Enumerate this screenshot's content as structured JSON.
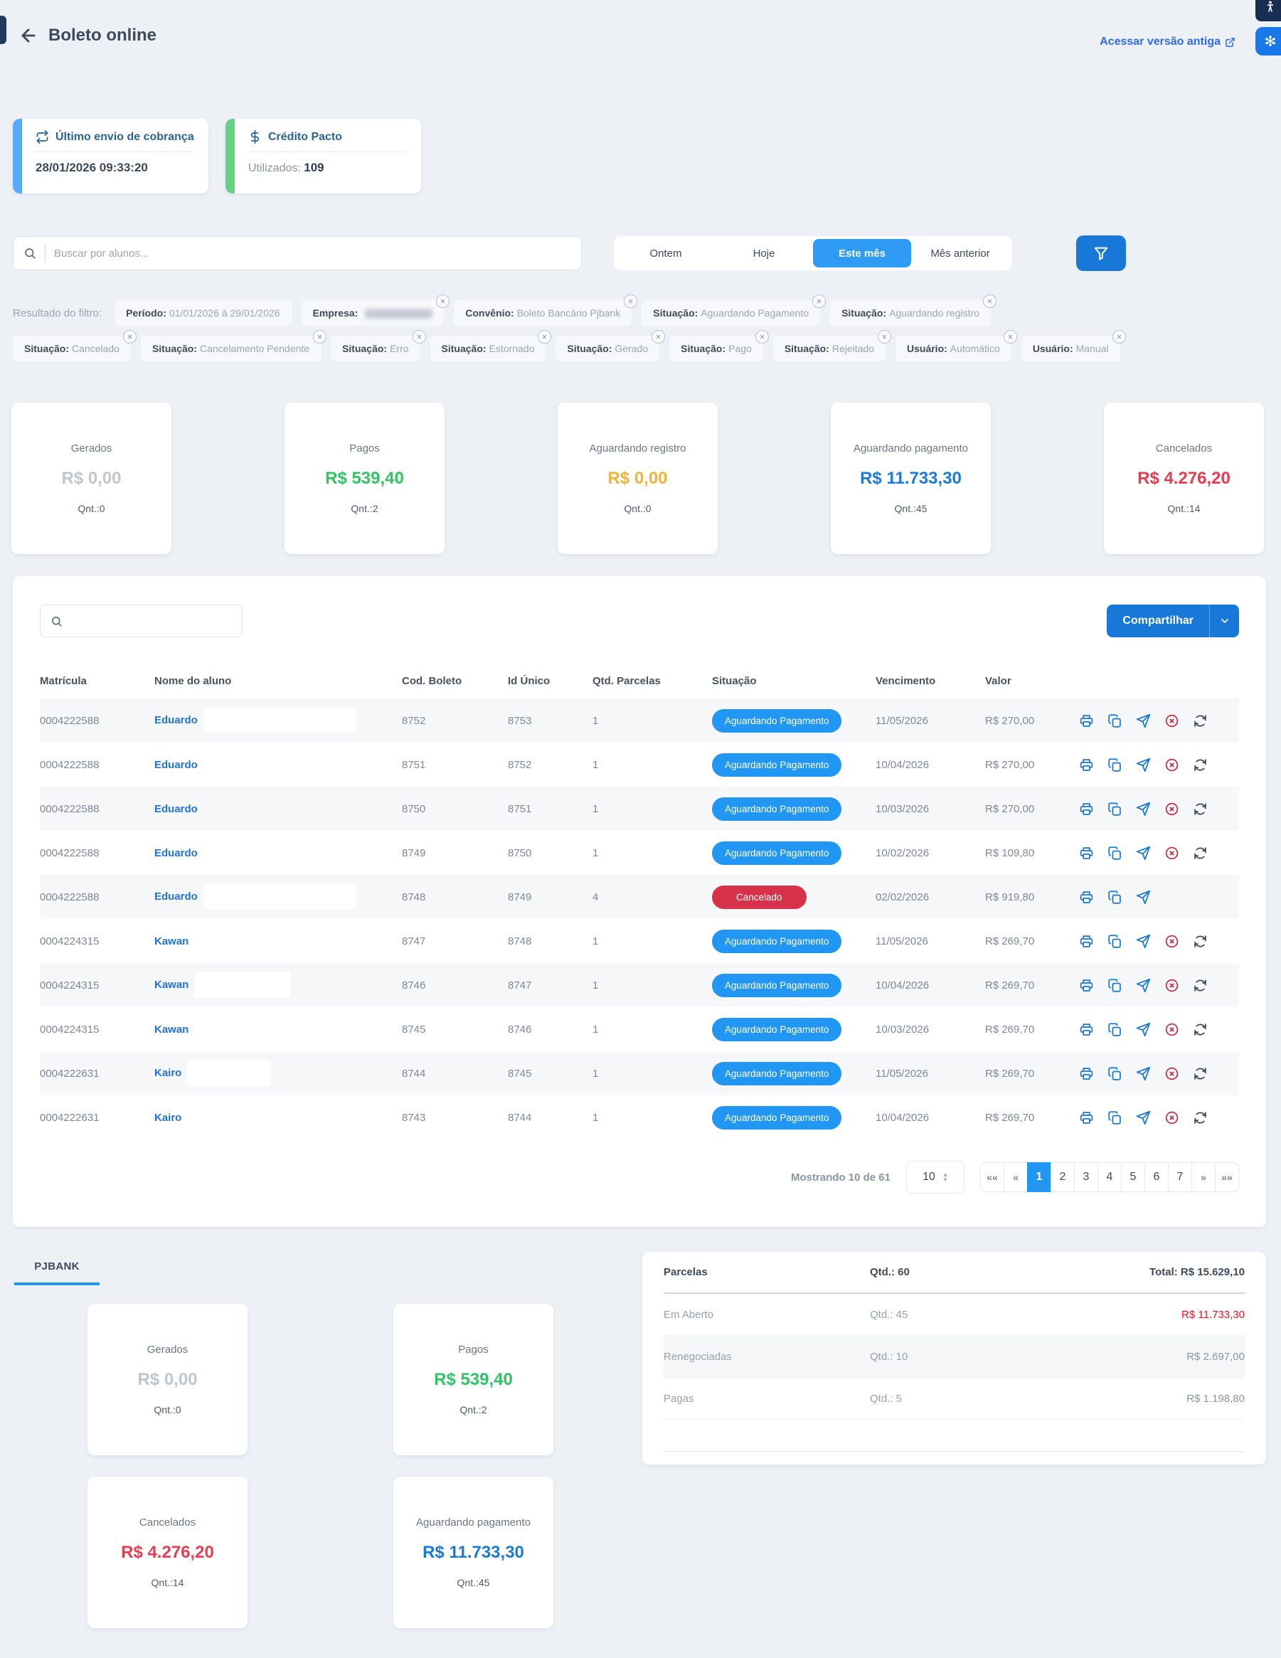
{
  "header": {
    "title": "Boleto online",
    "old_version_link": "Acessar versão antiga"
  },
  "info_cards": [
    {
      "title": "Último envio de cobrança",
      "icon": "repeat-icon",
      "accent": "#57aaf7",
      "value": "28/01/2026 09:33:20"
    },
    {
      "title": "Crédito Pacto",
      "icon": "dollar-icon",
      "accent": "#62d383",
      "label": "Utilizados:",
      "value": "109"
    }
  ],
  "search": {
    "placeholder": "Buscar por alunos..."
  },
  "date_filters": {
    "options": [
      "Ontem",
      "Hoje",
      "Este mês",
      "Mês anterior"
    ],
    "active": "Este mês"
  },
  "filter_results": {
    "label": "Resultado do filtro:",
    "chips": [
      {
        "label": "Período:",
        "value": "01/01/2026 à 29/01/2026",
        "closable": false
      },
      {
        "label": "Empresa:",
        "value": "",
        "redacted": true,
        "closable": true
      },
      {
        "label": "Convênio:",
        "value": "Boleto Bancário Pjbank",
        "closable": true
      },
      {
        "label": "Situação:",
        "value": "Aguardando Pagamento",
        "closable": true
      },
      {
        "label": "Situação:",
        "value": "Aguardando registro",
        "closable": true
      },
      {
        "label": "Situação:",
        "value": "Cancelado",
        "closable": true
      },
      {
        "label": "Situação:",
        "value": "Cancelamento Pendente",
        "closable": true
      },
      {
        "label": "Situação:",
        "value": "Erro",
        "closable": true
      },
      {
        "label": "Situação:",
        "value": "Estornado",
        "closable": true
      },
      {
        "label": "Situação:",
        "value": "Gerado",
        "closable": true
      },
      {
        "label": "Situação:",
        "value": "Pago",
        "closable": true
      },
      {
        "label": "Situação:",
        "value": "Rejeitado",
        "closable": true
      },
      {
        "label": "Usuário:",
        "value": "Automático",
        "closable": true
      },
      {
        "label": "Usuário:",
        "value": "Manual",
        "closable": true
      }
    ]
  },
  "summary_cards": [
    {
      "label": "Gerados",
      "value": "R$ 0,00",
      "qty": "Qnt.:0",
      "color": "#c0c6cf"
    },
    {
      "label": "Pagos",
      "value": "R$ 539,40",
      "qty": "Qnt.:2",
      "color": "#2fc563"
    },
    {
      "label": "Aguardando registro",
      "value": "R$ 0,00",
      "qty": "Qnt.:0",
      "color": "#f2b33d"
    },
    {
      "label": "Aguardando pagamento",
      "value": "R$ 11.733,30",
      "qty": "Qnt.:45",
      "color": "#1b79d8"
    },
    {
      "label": "Cancelados",
      "value": "R$ 4.276,20",
      "qty": "Qnt.:14",
      "color": "#e63c52"
    }
  ],
  "table": {
    "share_button": {
      "label": "Compartilhar"
    },
    "columns": [
      "Matrícula",
      "Nome do aluno",
      "Cod. Boleto",
      "Id Único",
      "Qtd. Parcelas",
      "Situação",
      "Vencimento",
      "Valor"
    ],
    "rows": [
      {
        "matricula": "0004222588",
        "nome": "Eduardo",
        "mask": 215,
        "cod": "8752",
        "id_unico": "8753",
        "parcelas": "1",
        "situacao": "Aguardando Pagamento",
        "situacao_tipo": "waiting",
        "vencimento": "11/05/2026",
        "valor": "R$ 270,00",
        "actions": [
          "print",
          "copy",
          "send",
          "cancel",
          "refresh"
        ]
      },
      {
        "matricula": "0004222588",
        "nome": "Eduardo",
        "mask": 0,
        "cod": "8751",
        "id_unico": "8752",
        "parcelas": "1",
        "situacao": "Aguardando Pagamento",
        "situacao_tipo": "waiting",
        "vencimento": "10/04/2026",
        "valor": "R$ 270,00",
        "actions": [
          "print",
          "copy",
          "send",
          "cancel",
          "refresh"
        ]
      },
      {
        "matricula": "0004222588",
        "nome": "Eduardo",
        "mask": 0,
        "cod": "8750",
        "id_unico": "8751",
        "parcelas": "1",
        "situacao": "Aguardando Pagamento",
        "situacao_tipo": "waiting",
        "vencimento": "10/03/2026",
        "valor": "R$ 270,00",
        "actions": [
          "print",
          "copy",
          "send",
          "cancel",
          "refresh"
        ]
      },
      {
        "matricula": "0004222588",
        "nome": "Eduardo",
        "mask": 0,
        "cod": "8749",
        "id_unico": "8750",
        "parcelas": "1",
        "situacao": "Aguardando Pagamento",
        "situacao_tipo": "waiting",
        "vencimento": "10/02/2026",
        "valor": "R$ 109,80",
        "actions": [
          "print",
          "copy",
          "send",
          "cancel",
          "refresh"
        ]
      },
      {
        "matricula": "0004222588",
        "nome": "Eduardo",
        "mask": 215,
        "cod": "8748",
        "id_unico": "8749",
        "parcelas": "4",
        "situacao": "Cancelado",
        "situacao_tipo": "cancelled",
        "vencimento": "02/02/2026",
        "valor": "R$ 919,80",
        "actions": [
          "print",
          "copy",
          "send"
        ]
      },
      {
        "matricula": "0004224315",
        "nome": "Kawan",
        "mask": 0,
        "cod": "8747",
        "id_unico": "8748",
        "parcelas": "1",
        "situacao": "Aguardando Pagamento",
        "situacao_tipo": "waiting",
        "vencimento": "11/05/2026",
        "valor": "R$ 269,70",
        "actions": [
          "print",
          "copy",
          "send",
          "cancel",
          "refresh"
        ]
      },
      {
        "matricula": "0004224315",
        "nome": "Kawan",
        "mask": 135,
        "cod": "8746",
        "id_unico": "8747",
        "parcelas": "1",
        "situacao": "Aguardando Pagamento",
        "situacao_tipo": "waiting",
        "vencimento": "10/04/2026",
        "valor": "R$ 269,70",
        "actions": [
          "print",
          "copy",
          "send",
          "cancel",
          "refresh"
        ]
      },
      {
        "matricula": "0004224315",
        "nome": "Kawan",
        "mask": 0,
        "cod": "8745",
        "id_unico": "8746",
        "parcelas": "1",
        "situacao": "Aguardando Pagamento",
        "situacao_tipo": "waiting",
        "vencimento": "10/03/2026",
        "valor": "R$ 269,70",
        "actions": [
          "print",
          "copy",
          "send",
          "cancel",
          "refresh"
        ]
      },
      {
        "matricula": "0004222631",
        "nome": "Kairo",
        "mask": 118,
        "cod": "8744",
        "id_unico": "8745",
        "parcelas": "1",
        "situacao": "Aguardando Pagamento",
        "situacao_tipo": "waiting",
        "vencimento": "11/05/2026",
        "valor": "R$ 269,70",
        "actions": [
          "print",
          "copy",
          "send",
          "cancel",
          "refresh"
        ]
      },
      {
        "matricula": "0004222631",
        "nome": "Kairo",
        "mask": 0,
        "cod": "8743",
        "id_unico": "8744",
        "parcelas": "1",
        "situacao": "Aguardando Pagamento",
        "situacao_tipo": "waiting",
        "vencimento": "10/04/2026",
        "valor": "R$ 269,70",
        "actions": [
          "print",
          "copy",
          "send",
          "cancel",
          "refresh"
        ]
      }
    ],
    "pagination": {
      "showing": "Mostrando 10 de 61",
      "page_size": "10",
      "items": [
        "««",
        "«",
        "1",
        "2",
        "3",
        "4",
        "5",
        "6",
        "7",
        "»",
        "»»"
      ],
      "active": "1"
    }
  },
  "provider_section": {
    "tab": "PJBANK",
    "cards": [
      {
        "label": "Gerados",
        "value": "R$ 0,00",
        "qty": "Qnt.:0",
        "color": "#c0c6cf"
      },
      {
        "label": "Pagos",
        "value": "R$ 539,40",
        "qty": "Qnt.:2",
        "color": "#2fc563"
      },
      {
        "label": "Cancelados",
        "value": "R$ 4.276,20",
        "qty": "Qnt.:14",
        "color": "#e63c52"
      },
      {
        "label": "Aguardando pagamento",
        "value": "R$ 11.733,30",
        "qty": "Qnt.:45",
        "color": "#1b79d8"
      }
    ],
    "parcelas": {
      "header": {
        "label": "Parcelas",
        "qty": "Qtd.: 60",
        "total": "Total: R$ 15.629,10"
      },
      "rows": [
        {
          "label": "Em Aberto",
          "qty": "Qtd.: 45",
          "value": "R$ 11.733,30",
          "highlight": true
        },
        {
          "label": "Renegociadas",
          "qty": "Qtd.: 10",
          "value": "R$ 2.697,00",
          "highlight": false
        },
        {
          "label": "Pagas",
          "qty": "Qtd.: 5",
          "value": "R$ 1.198,80",
          "highlight": false
        }
      ]
    }
  }
}
